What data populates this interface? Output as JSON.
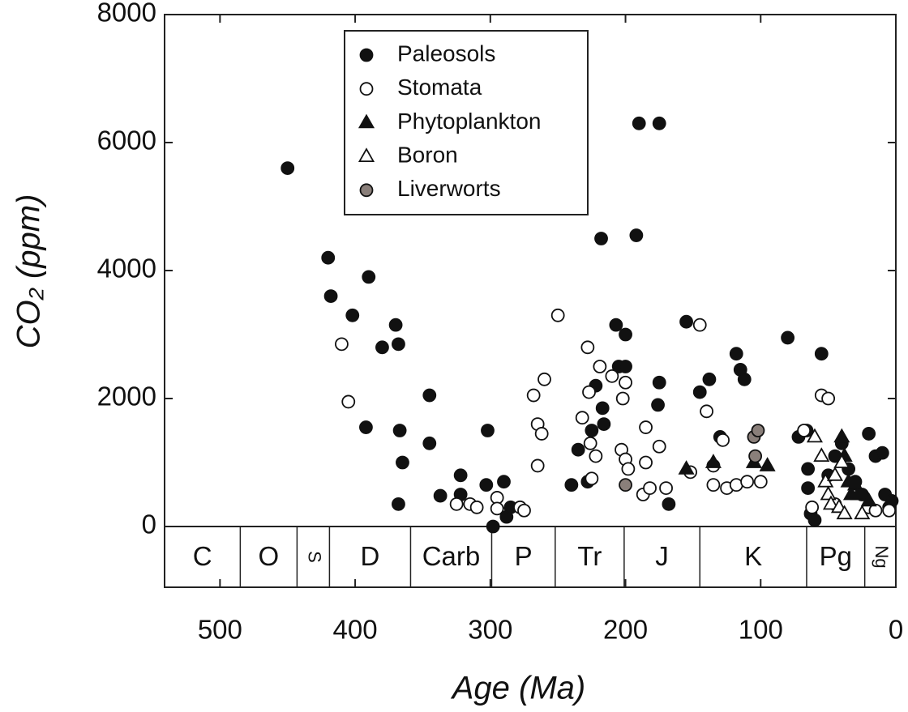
{
  "chart_data": {
    "type": "scatter",
    "x_label": "Age (Ma)",
    "y_label": "CO₂ (ppm)",
    "xlim": [
      541,
      0
    ],
    "ylim": [
      0,
      8000
    ],
    "xticks": [
      500,
      400,
      300,
      200,
      100,
      0
    ],
    "yticks": [
      0,
      2000,
      4000,
      6000,
      8000
    ],
    "periods": [
      {
        "label": "C",
        "start": 541,
        "end": 485
      },
      {
        "label": "O",
        "start": 485,
        "end": 443
      },
      {
        "label": "S",
        "start": 443,
        "end": 419
      },
      {
        "label": "D",
        "start": 419,
        "end": 359
      },
      {
        "label": "Carb",
        "start": 359,
        "end": 299
      },
      {
        "label": "P",
        "start": 299,
        "end": 252
      },
      {
        "label": "Tr",
        "start": 252,
        "end": 201
      },
      {
        "label": "J",
        "start": 201,
        "end": 145
      },
      {
        "label": "K",
        "start": 145,
        "end": 66
      },
      {
        "label": "Pg",
        "start": 66,
        "end": 23
      },
      {
        "label": "Ng",
        "start": 23,
        "end": 0
      }
    ],
    "series": [
      {
        "name": "Paleosols",
        "marker": "circle",
        "color": "#111111",
        "x": [
          450,
          420,
          418,
          402,
          390,
          392,
          380,
          370,
          368,
          367,
          365,
          368,
          345,
          345,
          337,
          322,
          322,
          302,
          303,
          298,
          290,
          288,
          285,
          240,
          235,
          228,
          225,
          222,
          218,
          217,
          216,
          207,
          205,
          200,
          200,
          192,
          190,
          175,
          175,
          176,
          168,
          155,
          145,
          138,
          130,
          118,
          115,
          112,
          80,
          72,
          66,
          65,
          65,
          63,
          60,
          55,
          50,
          45,
          40,
          35,
          30,
          25,
          20,
          15,
          10,
          8,
          5,
          3
        ],
        "values": [
          5600,
          4200,
          3600,
          3300,
          3900,
          1550,
          2800,
          3150,
          2850,
          1500,
          1000,
          350,
          2050,
          1300,
          480,
          800,
          500,
          1500,
          650,
          0,
          700,
          150,
          300,
          650,
          1200,
          700,
          1500,
          2200,
          4500,
          1850,
          1600,
          3150,
          2500,
          3000,
          2500,
          4550,
          6300,
          6300,
          2250,
          1900,
          350,
          3200,
          2100,
          2300,
          1400,
          2700,
          2450,
          2300,
          2950,
          1400,
          1500,
          900,
          600,
          200,
          100,
          2700,
          800,
          1100,
          1300,
          900,
          700,
          500,
          1450,
          1100,
          1150,
          500,
          300,
          400
        ]
      },
      {
        "name": "Stomata",
        "marker": "circle",
        "color": "#ffffff",
        "x": [
          410,
          405,
          325,
          315,
          310,
          295,
          295,
          278,
          275,
          268,
          265,
          265,
          262,
          260,
          250,
          232,
          228,
          227,
          226,
          225,
          222,
          219,
          210,
          203,
          202,
          200,
          200,
          198,
          187,
          185,
          185,
          182,
          175,
          170,
          152,
          145,
          140,
          135,
          135,
          128,
          125,
          118,
          110,
          100,
          68,
          62,
          55,
          50,
          45,
          20,
          15,
          5
        ],
        "values": [
          2850,
          1950,
          350,
          350,
          300,
          450,
          280,
          300,
          250,
          2050,
          1600,
          950,
          1450,
          2300,
          3300,
          1700,
          2800,
          2100,
          1300,
          750,
          1100,
          2500,
          2350,
          1200,
          2000,
          2250,
          1050,
          900,
          500,
          1550,
          1000,
          600,
          1250,
          600,
          850,
          3150,
          1800,
          950,
          650,
          1350,
          600,
          650,
          700,
          700,
          1500,
          300,
          2050,
          2000,
          350,
          300,
          250,
          250
        ]
      },
      {
        "name": "Phytoplankton",
        "marker": "triangle",
        "color": "#111111",
        "x": [
          155,
          135,
          105,
          95,
          40,
          38,
          35,
          33,
          30,
          28,
          20
        ],
        "values": [
          900,
          1000,
          1000,
          950,
          1400,
          1100,
          700,
          500,
          650,
          500,
          400
        ]
      },
      {
        "name": "Boron",
        "marker": "triangle",
        "color": "#ffffff",
        "x": [
          60,
          55,
          52,
          50,
          48,
          45,
          42,
          40,
          38,
          25
        ],
        "values": [
          1400,
          1100,
          700,
          500,
          350,
          800,
          300,
          1000,
          200,
          200
        ]
      },
      {
        "name": "Liverworts",
        "marker": "circle",
        "color": "#8a7f7a",
        "x": [
          200,
          105,
          104,
          102
        ],
        "values": [
          650,
          1400,
          1100,
          1500
        ]
      }
    ]
  }
}
